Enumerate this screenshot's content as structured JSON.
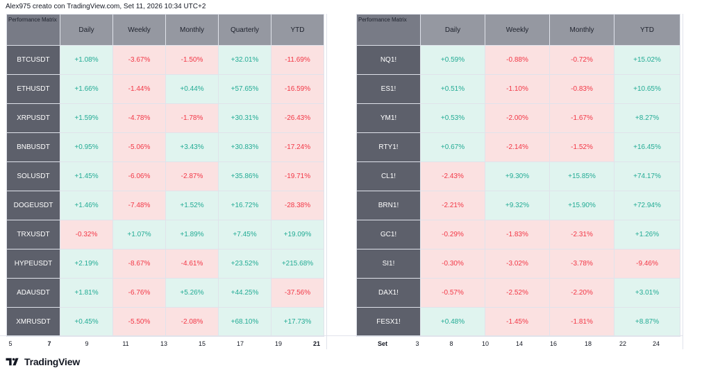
{
  "caption": "Alex975 creato con TradingView.com, Set 11, 2026 10:34 UTC+2",
  "left_matrix": {
    "corner_label": "Performance Matrix",
    "columns": [
      "Daily",
      "Weekly",
      "Monthly",
      "Quarterly",
      "YTD"
    ],
    "rows": [
      {
        "symbol": "BTCUSDT",
        "values": [
          "+1.08%",
          "-3.67%",
          "-1.50%",
          "+32.01%",
          "-11.69%"
        ]
      },
      {
        "symbol": "ETHUSDT",
        "values": [
          "+1.66%",
          "-1.44%",
          "+0.44%",
          "+57.65%",
          "-16.59%"
        ]
      },
      {
        "symbol": "XRPUSDT",
        "values": [
          "+1.59%",
          "-4.78%",
          "-1.78%",
          "+30.31%",
          "-26.43%"
        ]
      },
      {
        "symbol": "BNBUSDT",
        "values": [
          "+0.95%",
          "-5.06%",
          "+3.43%",
          "+30.83%",
          "-17.24%"
        ]
      },
      {
        "symbol": "SOLUSDT",
        "values": [
          "+1.45%",
          "-6.06%",
          "-2.87%",
          "+35.86%",
          "-19.71%"
        ]
      },
      {
        "symbol": "DOGEUSDT",
        "values": [
          "+1.46%",
          "-7.48%",
          "+1.52%",
          "+16.72%",
          "-28.38%"
        ]
      },
      {
        "symbol": "TRXUSDT",
        "values": [
          "-0.32%",
          "+1.07%",
          "+1.89%",
          "+7.45%",
          "+19.09%"
        ]
      },
      {
        "symbol": "HYPEUSDT",
        "values": [
          "+2.19%",
          "-8.67%",
          "-4.61%",
          "+23.52%",
          "+215.68%"
        ]
      },
      {
        "symbol": "ADAUSDT",
        "values": [
          "+1.81%",
          "-6.76%",
          "+5.26%",
          "+44.25%",
          "-37.56%"
        ]
      },
      {
        "symbol": "XMRUSDT",
        "values": [
          "+0.45%",
          "-5.50%",
          "-2.08%",
          "+68.10%",
          "+17.73%"
        ]
      }
    ]
  },
  "right_matrix": {
    "corner_label": "Performance Matrix",
    "columns": [
      "Daily",
      "Weekly",
      "Monthly",
      "YTD"
    ],
    "rows": [
      {
        "symbol": "NQ1!",
        "values": [
          "+0.59%",
          "-0.88%",
          "-0.72%",
          "+15.02%"
        ]
      },
      {
        "symbol": "ES1!",
        "values": [
          "+0.51%",
          "-1.10%",
          "-0.83%",
          "+10.65%"
        ]
      },
      {
        "symbol": "YM1!",
        "values": [
          "+0.53%",
          "-2.00%",
          "-1.67%",
          "+8.27%"
        ]
      },
      {
        "symbol": "RTY1!",
        "values": [
          "+0.67%",
          "-2.14%",
          "-1.52%",
          "+16.45%"
        ]
      },
      {
        "symbol": "CL1!",
        "values": [
          "-2.43%",
          "+9.30%",
          "+15.85%",
          "+74.17%"
        ]
      },
      {
        "symbol": "BRN1!",
        "values": [
          "-2.21%",
          "+9.32%",
          "+15.90%",
          "+72.94%"
        ]
      },
      {
        "symbol": "GC1!",
        "values": [
          "-0.29%",
          "-1.83%",
          "-2.31%",
          "+1.26%"
        ]
      },
      {
        "symbol": "SI1!",
        "values": [
          "-0.30%",
          "-3.02%",
          "-3.78%",
          "-9.46%"
        ]
      },
      {
        "symbol": "DAX1!",
        "values": [
          "-0.57%",
          "-2.52%",
          "-2.20%",
          "+3.01%"
        ]
      },
      {
        "symbol": "FESX1!",
        "values": [
          "+0.48%",
          "-1.45%",
          "-1.81%",
          "+8.87%"
        ]
      }
    ]
  },
  "left_axis": [
    {
      "label": "5",
      "bold": false
    },
    {
      "label": "7",
      "bold": true
    },
    {
      "label": "9",
      "bold": false
    },
    {
      "label": "11",
      "bold": false
    },
    {
      "label": "13",
      "bold": false
    },
    {
      "label": "15",
      "bold": false
    },
    {
      "label": "17",
      "bold": false
    },
    {
      "label": "19",
      "bold": false
    },
    {
      "label": "21",
      "bold": true
    }
  ],
  "right_axis": [
    {
      "label": "Set",
      "bold": true
    },
    {
      "label": "3",
      "bold": false
    },
    {
      "label": "8",
      "bold": false
    },
    {
      "label": "10",
      "bold": false
    },
    {
      "label": "14",
      "bold": false
    },
    {
      "label": "16",
      "bold": false
    },
    {
      "label": "18",
      "bold": false
    },
    {
      "label": "22",
      "bold": false
    },
    {
      "label": "24",
      "bold": false
    }
  ],
  "brand": "TradingView",
  "colors": {
    "positive": "#22ab94",
    "negative": "#f23645",
    "positive_bg": "#e0f4ef",
    "negative_bg": "#fbe1e1"
  }
}
